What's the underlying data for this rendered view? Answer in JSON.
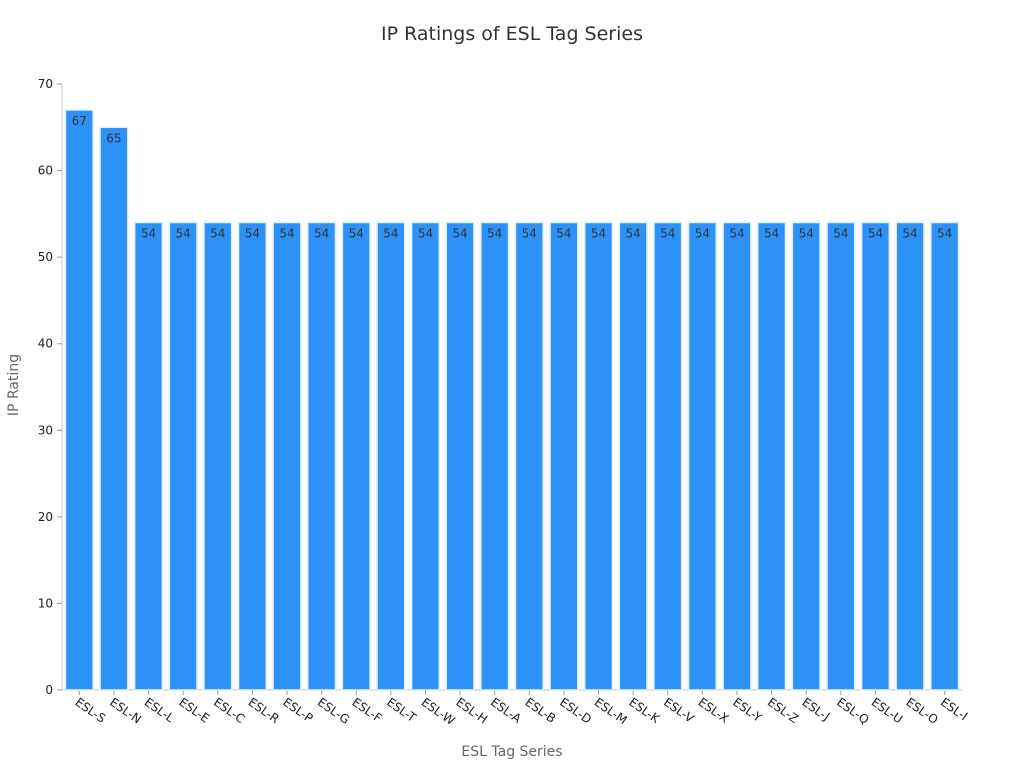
{
  "chart_data": {
    "type": "bar",
    "title": "IP Ratings of ESL Tag Series",
    "xlabel": "ESL Tag Series",
    "ylabel": "IP Rating",
    "ylim": [
      0,
      70
    ],
    "yticks": [
      0,
      10,
      20,
      30,
      40,
      50,
      60,
      70
    ],
    "categories": [
      "ESL-S",
      "ESL-N",
      "ESL-L",
      "ESL-E",
      "ESL-C",
      "ESL-R",
      "ESL-P",
      "ESL-G",
      "ESL-F",
      "ESL-T",
      "ESL-W",
      "ESL-H",
      "ESL-A",
      "ESL-B",
      "ESL-D",
      "ESL-M",
      "ESL-K",
      "ESL-V",
      "ESL-X",
      "ESL-Y",
      "ESL-Z",
      "ESL-J",
      "ESL-Q",
      "ESL-U",
      "ESL-O",
      "ESL-I"
    ],
    "values": [
      67,
      65,
      54,
      54,
      54,
      54,
      54,
      54,
      54,
      54,
      54,
      54,
      54,
      54,
      54,
      54,
      54,
      54,
      54,
      54,
      54,
      54,
      54,
      54,
      54,
      54
    ],
    "data_labels": true,
    "grid": false,
    "legend": "none",
    "bar_color": "#2d92f8",
    "bar_edge_color": "#e3eefb"
  }
}
